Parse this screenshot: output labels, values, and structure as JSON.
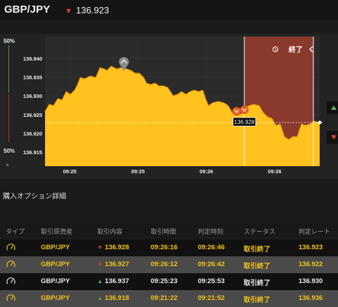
{
  "header": {
    "pair": "GBP/JPY",
    "price": "136.923",
    "price_direction": "down"
  },
  "gauge": {
    "top_pct": "50%",
    "bottom_pct": "50%",
    "close": "×"
  },
  "chart": {
    "y_ticks": [
      "136.940",
      "136.935",
      "136.930",
      "136.925",
      "136.920",
      "136.915"
    ],
    "x_ticks": [
      "09:25",
      "09:25",
      "09:26",
      "09:26"
    ],
    "current_price_label": "136.928",
    "end_label": "終了",
    "colors": {
      "area": "#ffc21e",
      "expired_zone": "#8a3a2c",
      "background": "#232323"
    }
  },
  "section": {
    "title": "購入オプション詳細"
  },
  "table": {
    "headers": [
      "タイプ",
      "取引原資産",
      "取引内容",
      "取引時間",
      "判定時刻",
      "ステータス",
      "判定レート"
    ],
    "rows": [
      {
        "asset": "GBP/JPY",
        "direction": "down",
        "rate": "136.928",
        "time": "09:26:16",
        "judge": "09:26:46",
        "status": "取引終了",
        "result": "136.923"
      },
      {
        "asset": "GBP/JPY",
        "direction": "down",
        "rate": "136.927",
        "time": "09:26:12",
        "judge": "09:26:42",
        "status": "取引終了",
        "result": "136.922"
      },
      {
        "asset": "GBP/JPY",
        "direction": "up",
        "rate": "136.937",
        "time": "09:25:23",
        "judge": "09:25:53",
        "status": "取引終了",
        "result": "136.930"
      },
      {
        "asset": "GBP/JPY",
        "direction": "up",
        "rate": "136.918",
        "time": "09:21:22",
        "judge": "09:21:52",
        "status": "取引終了",
        "result": "136.936"
      }
    ]
  }
}
